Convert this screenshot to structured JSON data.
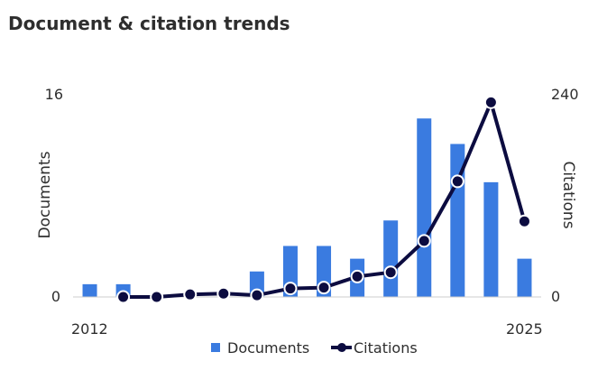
{
  "chart_data": {
    "type": "bar",
    "title": "Document & citation trends",
    "categories": [
      "2012",
      "2013",
      "2014",
      "2015",
      "2016",
      "2017",
      "2018",
      "2019",
      "2020",
      "2021",
      "2022",
      "2023",
      "2024",
      "2025"
    ],
    "x_tick_labels": [
      "2012",
      "2025"
    ],
    "series": [
      {
        "name": "Documents",
        "type": "bar",
        "axis": "left",
        "color": "#3a7be0",
        "values": [
          1,
          1,
          0,
          0,
          0,
          2,
          4,
          4,
          3,
          6,
          14,
          12,
          9,
          3
        ]
      },
      {
        "name": "Citations",
        "type": "line",
        "axis": "right",
        "color": "#0c0c40",
        "values": [
          null,
          0,
          0,
          3,
          4,
          2,
          10,
          11,
          24,
          29,
          66,
          136,
          229,
          89
        ]
      }
    ],
    "y_left": {
      "label": "Documents",
      "range": [
        0,
        16
      ],
      "ticks": [
        "0",
        "16"
      ]
    },
    "y_right": {
      "label": "Citations",
      "range": [
        0,
        240
      ],
      "ticks": [
        "0",
        "240"
      ]
    },
    "grid": false,
    "legend": {
      "placement": "bottom",
      "items": [
        "Documents",
        "Citations"
      ]
    }
  }
}
